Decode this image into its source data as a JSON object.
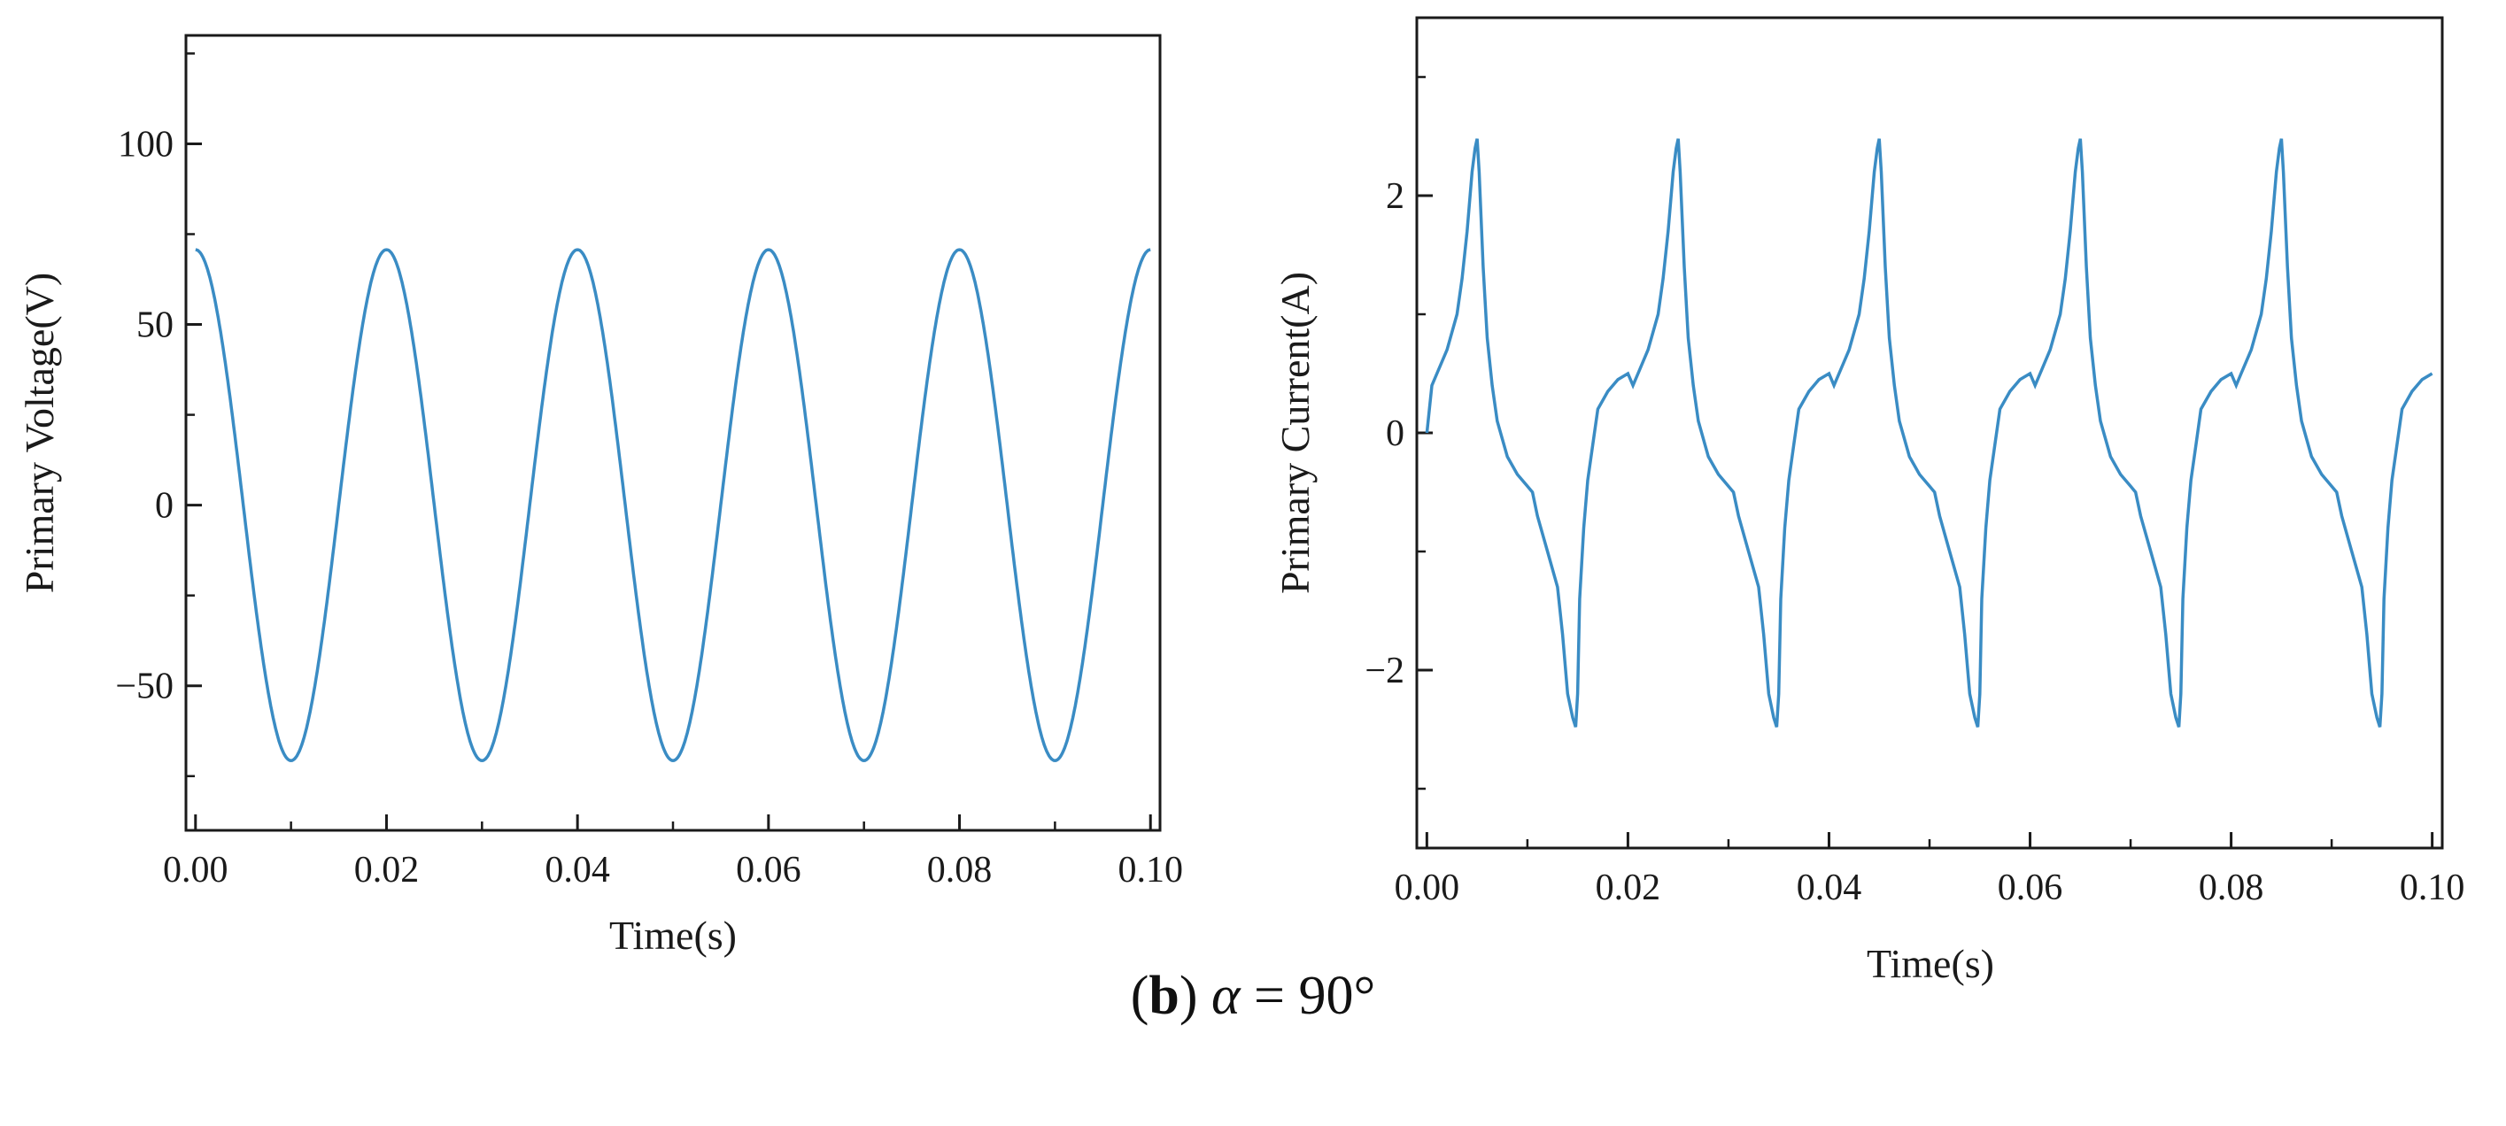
{
  "caption": {
    "paren_open": "(",
    "panel_letter": "b",
    "paren_close": ")",
    "symbol": "α",
    "rest": " = 90°"
  },
  "colors": {
    "line": "#3a8cc4",
    "axis": "#1a1a1a"
  },
  "chart_data": [
    {
      "type": "line",
      "title": "",
      "xlabel": "Time(s)",
      "ylabel": "Primary Voltage(V)",
      "xlim": [
        -0.001,
        0.101
      ],
      "ylim": [
        -90,
        130
      ],
      "xticks": [
        0.0,
        0.02,
        0.04,
        0.06,
        0.08,
        0.1
      ],
      "xtick_labels": [
        "0.00",
        "0.02",
        "0.04",
        "0.06",
        "0.08",
        "0.10"
      ],
      "yticks": [
        -50,
        0,
        50,
        100
      ],
      "ytick_labels": [
        "−50",
        "0",
        "50",
        "100"
      ],
      "waveform": "cosine",
      "amplitude": 70.7,
      "frequency_hz": 50,
      "x_range": [
        0.0,
        0.1
      ],
      "series": [
        {
          "name": "Primary Voltage",
          "color": "#3a8cc4"
        }
      ]
    },
    {
      "type": "line",
      "title": "",
      "xlabel": "Time(s)",
      "ylabel": "Primary Current(A)",
      "xlim": [
        -0.001,
        0.101
      ],
      "ylim": [
        -3.5,
        3.5
      ],
      "xticks": [
        0.0,
        0.02,
        0.04,
        0.06,
        0.08,
        0.1
      ],
      "xtick_labels": [
        "0.00",
        "0.02",
        "0.04",
        "0.06",
        "0.08",
        "0.10"
      ],
      "yticks": [
        -2,
        0,
        2
      ],
      "ytick_labels": [
        "−2",
        "0",
        "2"
      ],
      "waveform": "periodic",
      "period_s": 0.02,
      "x_range": [
        0.0,
        0.1
      ],
      "one_period_points": {
        "t": [
          0.0,
          0.0005,
          0.001,
          0.002,
          0.003,
          0.0035,
          0.004,
          0.0045,
          0.0048,
          0.005,
          0.0052,
          0.0056,
          0.006,
          0.0065,
          0.007,
          0.008,
          0.009,
          0.01,
          0.0105,
          0.011,
          0.012,
          0.013,
          0.0135,
          0.014,
          0.0145,
          0.0148,
          0.015,
          0.0152,
          0.0156,
          0.016,
          0.0165,
          0.017,
          0.018,
          0.019,
          0.02
        ],
        "y": [
          0.0,
          0.4,
          0.5,
          0.7,
          1.0,
          1.3,
          1.7,
          2.2,
          2.4,
          2.48,
          2.2,
          1.4,
          0.8,
          0.4,
          0.1,
          -0.2,
          -0.35,
          -0.45,
          -0.5,
          -0.7,
          -1.0,
          -1.3,
          -1.7,
          -2.2,
          -2.4,
          -2.48,
          -2.2,
          -1.4,
          -0.8,
          -0.4,
          -0.1,
          0.2,
          0.35,
          0.45,
          0.5
        ]
      },
      "series": [
        {
          "name": "Primary Current",
          "color": "#3a8cc4"
        }
      ]
    }
  ]
}
